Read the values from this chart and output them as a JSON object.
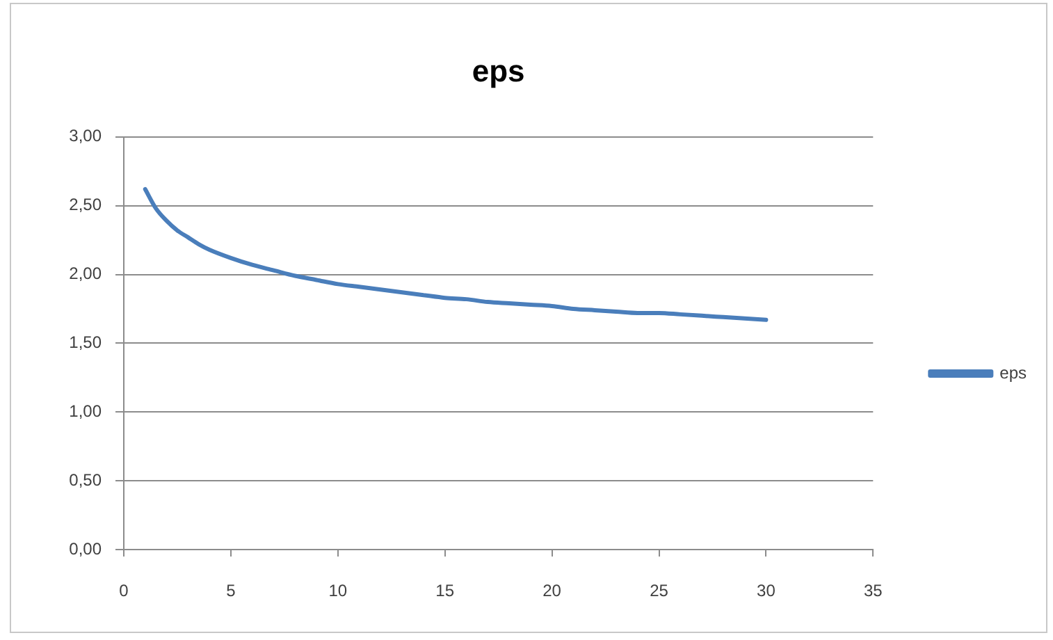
{
  "chart_data": {
    "type": "line",
    "title": "eps",
    "x": [
      1,
      1.5,
      2,
      2.5,
      3,
      3.5,
      4,
      5,
      6,
      7,
      8,
      9,
      10,
      11,
      12,
      13,
      14,
      15,
      16,
      17,
      18,
      19,
      20,
      21,
      22,
      23,
      24,
      25,
      26,
      27,
      28,
      29,
      30
    ],
    "series": [
      {
        "name": "eps",
        "color": "#4a7ebb",
        "values": [
          2.62,
          2.48,
          2.39,
          2.32,
          2.27,
          2.22,
          2.18,
          2.12,
          2.07,
          2.03,
          1.99,
          1.96,
          1.93,
          1.91,
          1.89,
          1.87,
          1.85,
          1.83,
          1.82,
          1.8,
          1.79,
          1.78,
          1.77,
          1.75,
          1.74,
          1.73,
          1.72,
          1.72,
          1.71,
          1.7,
          1.69,
          1.68,
          1.67
        ]
      }
    ],
    "xlim": [
      0,
      35
    ],
    "xticks": [
      0,
      5,
      10,
      15,
      20,
      25,
      30,
      35
    ],
    "ylim": [
      0,
      3
    ],
    "yticks": [
      {
        "value": 0,
        "label": "0,00"
      },
      {
        "value": 0.5,
        "label": "0,50"
      },
      {
        "value": 1,
        "label": "1,00"
      },
      {
        "value": 1.5,
        "label": "1,50"
      },
      {
        "value": 2,
        "label": "2,00"
      },
      {
        "value": 2.5,
        "label": "2,50"
      },
      {
        "value": 3,
        "label": "3,00"
      }
    ],
    "grid": "y",
    "legend": "right",
    "marker": "none",
    "line_style": "solid"
  }
}
